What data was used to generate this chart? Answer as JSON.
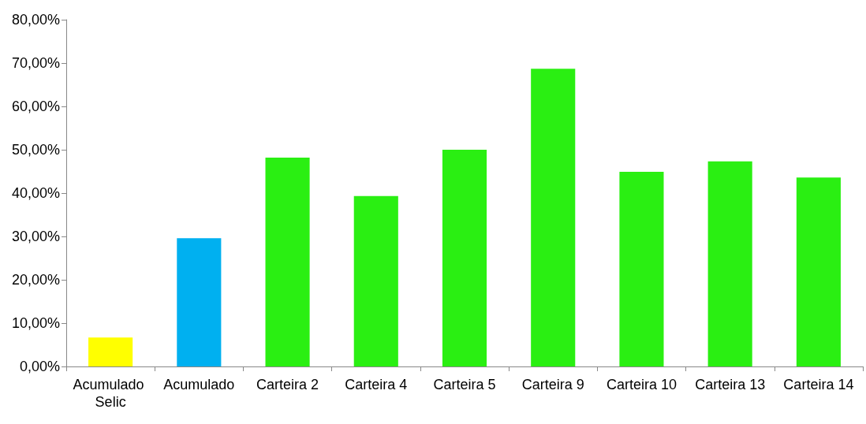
{
  "chart_data": {
    "type": "bar",
    "categories": [
      "Acumulado Selic",
      "Acumulado",
      "Carteira 2",
      "Carteira 4",
      "Carteira 5",
      "Carteira 9",
      "Carteira 10",
      "Carteira 13",
      "Carteira 14"
    ],
    "values": [
      6.7,
      29.6,
      48.2,
      39.3,
      50.0,
      68.7,
      44.9,
      47.3,
      43.6
    ],
    "colors": [
      "#ffff00",
      "#00b0f0",
      "#2aef12",
      "#2aef12",
      "#2aef12",
      "#2aef12",
      "#2aef12",
      "#2aef12",
      "#2aef12"
    ],
    "ylim": [
      0,
      80
    ],
    "yticks": [
      {
        "value": 0,
        "label": "0,00%"
      },
      {
        "value": 10,
        "label": "10,00%"
      },
      {
        "value": 20,
        "label": "20,00%"
      },
      {
        "value": 30,
        "label": "30,00%"
      },
      {
        "value": 40,
        "label": "40,00%"
      },
      {
        "value": 50,
        "label": "50,00%"
      },
      {
        "value": 60,
        "label": "60,00%"
      },
      {
        "value": 70,
        "label": "70,00%"
      },
      {
        "value": 80,
        "label": "80,00%"
      }
    ],
    "grid": false
  }
}
